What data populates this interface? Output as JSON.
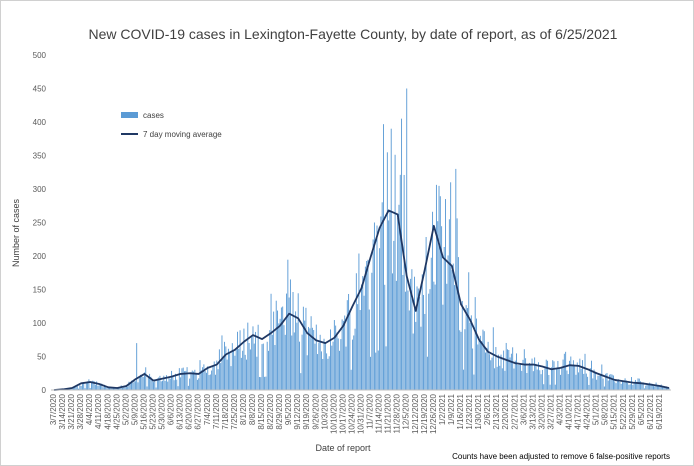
{
  "chart_data": {
    "type": "bar",
    "title": "New COVID-19 cases in Lexington-Fayette County, by date of report, as of 6/25/2021",
    "xlabel": "Date of report",
    "ylabel": "Number of cases",
    "ylim": [
      0,
      500
    ],
    "y_ticks": [
      "0",
      "50",
      "100",
      "150",
      "200",
      "250",
      "300",
      "350",
      "400",
      "450",
      "500"
    ],
    "x_tick_labels": [
      "3/7/2020",
      "3/14/2020",
      "3/21/2020",
      "3/28/2020",
      "4/4/2020",
      "4/11/2020",
      "4/18/2020",
      "4/25/2020",
      "5/2/2020",
      "5/9/2020",
      "5/16/2020",
      "5/23/2020",
      "5/30/2020",
      "6/6/2020",
      "6/13/2020",
      "6/20/2020",
      "6/27/2020",
      "7/4/2020",
      "7/11/2020",
      "7/18/2020",
      "7/25/2020",
      "8/1/2020",
      "8/8/2020",
      "8/15/2020",
      "8/22/2020",
      "8/29/2020",
      "9/5/2020",
      "9/12/2020",
      "9/19/2020",
      "9/26/2020",
      "10/3/2020",
      "10/10/2020",
      "10/17/2020",
      "10/24/2020",
      "10/31/2020",
      "11/7/2020",
      "11/14/2020",
      "11/21/2020",
      "11/28/2020",
      "12/5/2020",
      "12/12/2020",
      "12/19/2020",
      "12/26/2020",
      "1/2/2021",
      "1/9/2021",
      "1/16/2021",
      "1/23/2021",
      "1/30/2021",
      "2/6/2021",
      "2/13/2021",
      "2/20/2021",
      "2/27/2021",
      "3/6/2021",
      "3/13/2021",
      "3/20/2021",
      "3/27/2021",
      "4/3/2021",
      "4/10/2021",
      "4/17/2021",
      "4/24/2021",
      "5/1/2021",
      "5/8/2021",
      "5/15/2021",
      "5/22/2021",
      "5/29/2021",
      "6/5/2021",
      "6/12/2021",
      "6/19/2021"
    ],
    "weekly_moving_average": [
      0,
      1,
      3,
      10,
      12,
      9,
      4,
      3,
      6,
      16,
      24,
      14,
      17,
      20,
      24,
      25,
      24,
      33,
      38,
      53,
      60,
      72,
      82,
      76,
      85,
      96,
      114,
      107,
      85,
      74,
      70,
      78,
      96,
      125,
      152,
      198,
      242,
      268,
      262,
      170,
      118,
      180,
      245,
      198,
      185,
      128,
      105,
      75,
      57,
      50,
      45,
      40,
      38,
      38,
      35,
      31,
      33,
      37,
      36,
      31,
      25,
      20,
      15,
      13,
      11,
      10,
      8,
      6,
      3
    ],
    "peaks": [
      {
        "date": "12/5/2020",
        "value": 450
      },
      {
        "date": "12/1/2020",
        "value": 405
      },
      {
        "date": "11/23/2020",
        "value": 390
      },
      {
        "date": "1/12/2021",
        "value": 330
      },
      {
        "date": "1/8/2021",
        "value": 310
      },
      {
        "date": "1/4/2021",
        "value": 285
      },
      {
        "date": "9/6/2020",
        "value": 165
      },
      {
        "date": "5/10/2020",
        "value": 70
      }
    ],
    "series": [
      {
        "name": "cases",
        "color": "#5b9bd5"
      },
      {
        "name": "7 day moving average",
        "color": "#1f3864"
      }
    ],
    "legend_position": "upper-left",
    "grid": false
  },
  "footnote": "Counts have been adjusted to remove 6 false-positive reports"
}
